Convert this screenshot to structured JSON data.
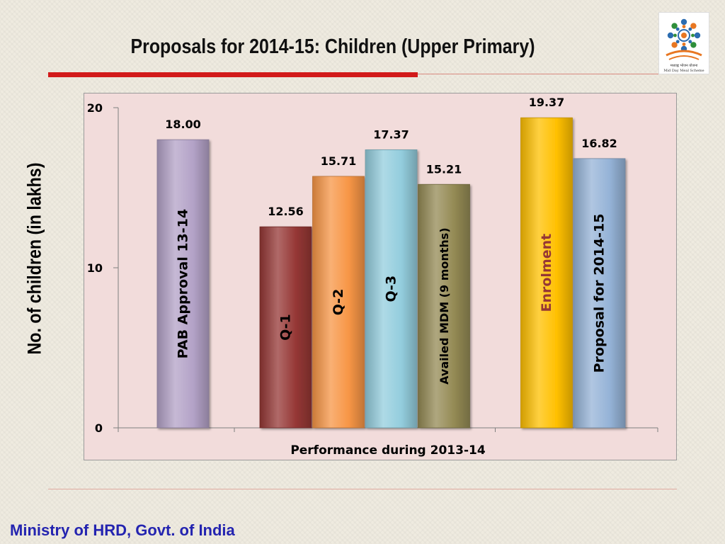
{
  "slide": {
    "title": "Proposals for 2014-15: Children (Upper Primary)",
    "footer": "Ministry of HRD, Govt. of India",
    "logo": {
      "caption_hindi": "मध्याह्न भोजन योजना",
      "caption_english": "Mid Day Meal Scheme"
    }
  },
  "colors": {
    "title_rule": "#d21a1a",
    "footer_text": "#2424b0",
    "plot_background": "#f2dcdb"
  },
  "chart_data": {
    "type": "bar",
    "title": "",
    "ylabel": "No. of children (in lakhs)",
    "xlabel": "Performance during 2013-14",
    "ylim": [
      0,
      20
    ],
    "yticks": [
      0,
      10,
      20
    ],
    "grid": false,
    "legend": "none",
    "categories": [
      "PAB Approval 13-14",
      "Q-1",
      "Q-2",
      "Q-3",
      "Availed MDM (9 months)",
      "Enrolment",
      "Proposal for 2014-15"
    ],
    "groups": [
      [
        0
      ],
      [
        1,
        2,
        3,
        4
      ],
      [
        5,
        6
      ]
    ],
    "values": [
      18.0,
      12.56,
      15.71,
      17.37,
      15.21,
      19.37,
      16.82
    ],
    "value_labels": [
      "18.00",
      "12.56",
      "15.71",
      "17.37",
      "15.21",
      "19.37",
      "16.82"
    ],
    "bar_colors": [
      "#b3a2c7",
      "#953735",
      "#f79646",
      "#93cddd",
      "#948a54",
      "#ffc000",
      "#95b3d7"
    ],
    "label_colors": [
      "#000000",
      "#000000",
      "#000000",
      "#000000",
      "#000000",
      "#953735",
      "#000000"
    ]
  }
}
